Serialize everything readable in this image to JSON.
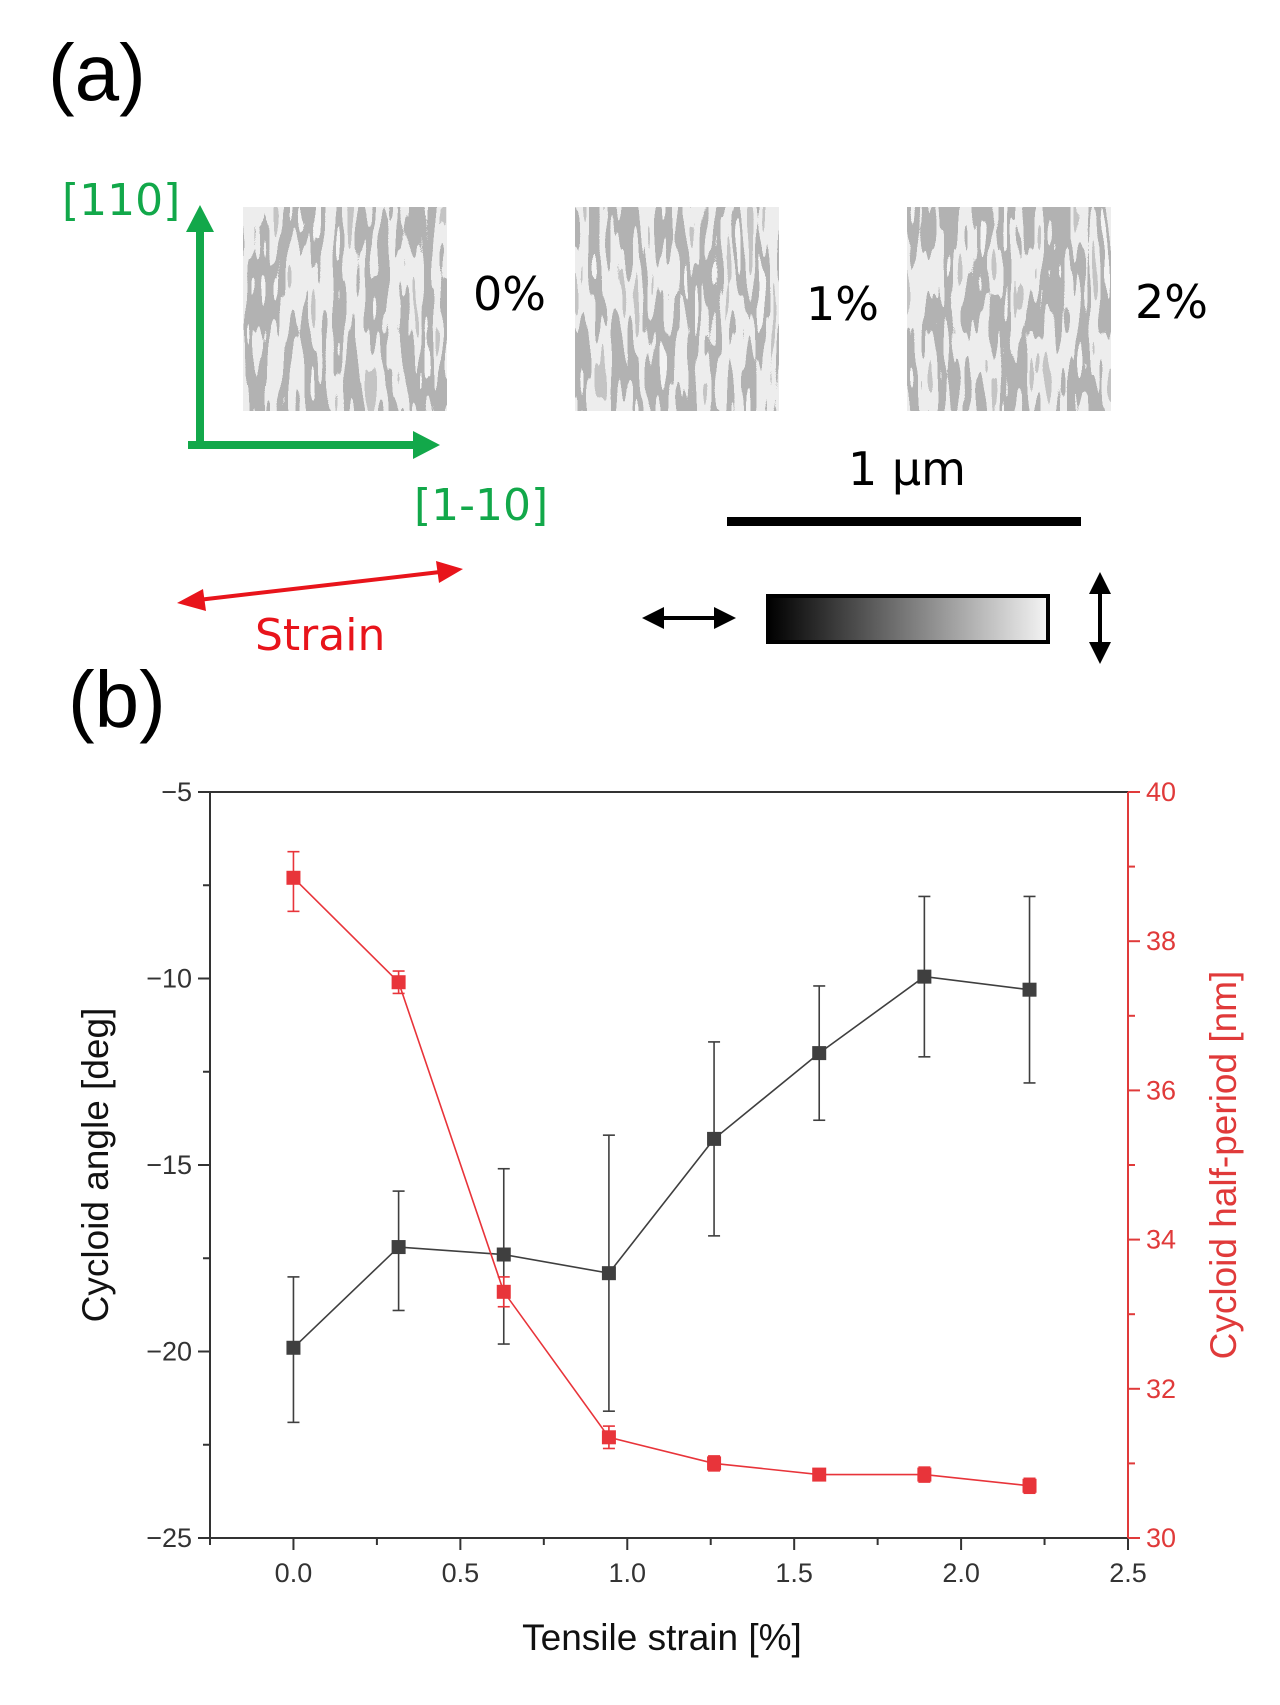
{
  "panel_a": {
    "label": "(a)",
    "axis_vertical_label": "[110]",
    "axis_horizontal_label": "[1-10]",
    "strain_label": "Strain",
    "images": [
      {
        "label": "0%"
      },
      {
        "label": "1%"
      },
      {
        "label": "2%"
      }
    ],
    "scale_bar_label": "1 µm",
    "colors": {
      "crystal_axes": "#12a84a",
      "strain_arrow": "#e8141b"
    }
  },
  "panel_b": {
    "label": "(b)"
  },
  "chart_data": {
    "type": "line",
    "xlabel": "Tensile strain [%]",
    "ylabel_left": "Cycloid angle [deg]",
    "ylabel_right": "Cycloid half-period [nm]",
    "xlim": [
      -0.25,
      2.5
    ],
    "ylim_left": [
      -25,
      -5
    ],
    "ylim_right": [
      30,
      40
    ],
    "x_ticks": [
      "0.0",
      "0.5",
      "1.0",
      "1.5",
      "2.0",
      "2.5"
    ],
    "y_left_ticks": [
      "-5",
      "-10",
      "-15",
      "-20",
      "-25"
    ],
    "y_right_ticks": [
      "40",
      "38",
      "36",
      "34",
      "32",
      "30"
    ],
    "x": [
      0.0,
      0.315,
      0.63,
      0.945,
      1.26,
      1.575,
      1.89,
      2.205
    ],
    "series": [
      {
        "axis": "left",
        "color": "#3f3f3f",
        "values": [
          -19.9,
          -17.2,
          -17.4,
          -17.9,
          -14.3,
          -12.0,
          -9.95,
          -10.3
        ],
        "err_low": [
          -21.9,
          -18.9,
          -19.8,
          -21.6,
          -16.9,
          -13.8,
          -12.1,
          -12.8
        ],
        "err_high": [
          -18.0,
          -15.7,
          -15.1,
          -14.2,
          -11.7,
          -10.2,
          -7.8,
          -7.8
        ]
      },
      {
        "axis": "right",
        "color": "#e8343a",
        "values": [
          38.85,
          37.45,
          33.3,
          31.35,
          31.0,
          30.85,
          30.85,
          30.7
        ],
        "err_low": [
          38.4,
          37.3,
          33.1,
          31.2,
          30.9,
          30.8,
          30.75,
          30.6
        ],
        "err_high": [
          39.2,
          37.6,
          33.5,
          31.5,
          31.1,
          30.9,
          30.95,
          30.8
        ]
      }
    ]
  }
}
